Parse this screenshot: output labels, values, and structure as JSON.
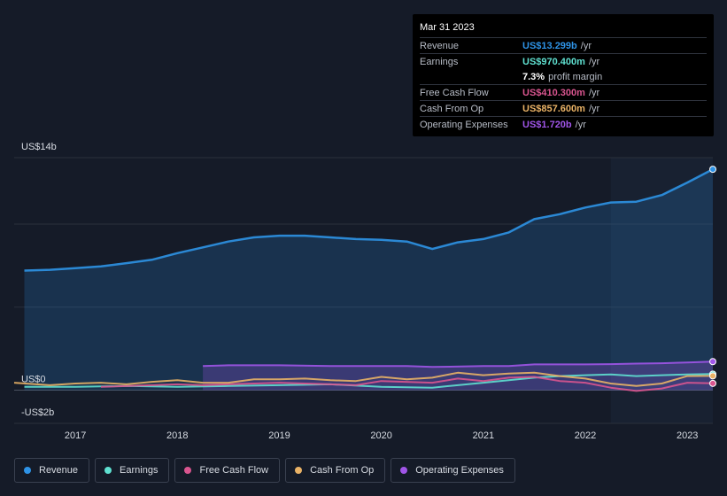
{
  "tooltip": {
    "date": "Mar 31 2023",
    "rows": [
      {
        "label": "Revenue",
        "value": "US$13.299b",
        "unit": "/yr",
        "color": "#2e93e6"
      },
      {
        "label": "Earnings",
        "value": "US$970.400m",
        "unit": "/yr",
        "color": "#5fe0d0"
      },
      {
        "label": "",
        "value": "7.3%",
        "unit": "profit margin",
        "color": "#ffffff"
      },
      {
        "label": "Free Cash Flow",
        "value": "US$410.300m",
        "unit": "/yr",
        "color": "#d9558f"
      },
      {
        "label": "Cash From Op",
        "value": "US$857.600m",
        "unit": "/yr",
        "color": "#e9b266"
      },
      {
        "label": "Operating Expenses",
        "value": "US$1.720b",
        "unit": "/yr",
        "color": "#a055e8"
      }
    ]
  },
  "legend": [
    {
      "label": "Revenue",
      "color": "#2e93e6"
    },
    {
      "label": "Earnings",
      "color": "#5fe0d0"
    },
    {
      "label": "Free Cash Flow",
      "color": "#d9558f"
    },
    {
      "label": "Cash From Op",
      "color": "#e9b266"
    },
    {
      "label": "Operating Expenses",
      "color": "#a055e8"
    }
  ],
  "chart_data": {
    "type": "area",
    "y_tick_labels": [
      "US$14b",
      "US$0",
      "-US$2b"
    ],
    "ylim": [
      -2,
      14
    ],
    "xlim": [
      2016.4,
      2023.25
    ],
    "x_tick_labels": [
      "2017",
      "2018",
      "2019",
      "2020",
      "2021",
      "2022",
      "2023"
    ],
    "x_ticks": [
      2017,
      2018,
      2019,
      2020,
      2021,
      2022,
      2023
    ],
    "forecast_shade_start": 2022.25,
    "grid": true,
    "legend_position": "bottom",
    "series": [
      {
        "name": "Revenue",
        "color": "#2e93e6",
        "fill": true,
        "points": [
          [
            2016.5,
            7.2
          ],
          [
            2016.75,
            7.25
          ],
          [
            2017.0,
            7.35
          ],
          [
            2017.25,
            7.45
          ],
          [
            2017.5,
            7.65
          ],
          [
            2017.75,
            7.85
          ],
          [
            2018.0,
            8.25
          ],
          [
            2018.25,
            8.6
          ],
          [
            2018.5,
            8.95
          ],
          [
            2018.75,
            9.2
          ],
          [
            2019.0,
            9.3
          ],
          [
            2019.25,
            9.3
          ],
          [
            2019.5,
            9.2
          ],
          [
            2019.75,
            9.1
          ],
          [
            2020.0,
            9.05
          ],
          [
            2020.25,
            8.95
          ],
          [
            2020.5,
            8.5
          ],
          [
            2020.75,
            8.9
          ],
          [
            2021.0,
            9.1
          ],
          [
            2021.25,
            9.5
          ],
          [
            2021.5,
            10.3
          ],
          [
            2021.75,
            10.6
          ],
          [
            2022.0,
            11.0
          ],
          [
            2022.25,
            11.3
          ],
          [
            2022.5,
            11.35
          ],
          [
            2022.75,
            11.75
          ],
          [
            2023.0,
            12.5
          ],
          [
            2023.25,
            13.3
          ]
        ]
      },
      {
        "name": "Earnings",
        "color": "#5fe0d0",
        "fill": false,
        "points": [
          [
            2016.5,
            0.2
          ],
          [
            2017.0,
            0.2
          ],
          [
            2017.5,
            0.25
          ],
          [
            2018.0,
            0.2
          ],
          [
            2018.5,
            0.25
          ],
          [
            2019.0,
            0.3
          ],
          [
            2019.5,
            0.35
          ],
          [
            2020.0,
            0.2
          ],
          [
            2020.5,
            0.15
          ],
          [
            2021.0,
            0.45
          ],
          [
            2021.5,
            0.75
          ],
          [
            2021.75,
            0.85
          ],
          [
            2022.0,
            0.9
          ],
          [
            2022.25,
            0.95
          ],
          [
            2022.5,
            0.85
          ],
          [
            2022.75,
            0.9
          ],
          [
            2023.0,
            0.95
          ],
          [
            2023.25,
            0.97
          ]
        ]
      },
      {
        "name": "Free Cash Flow",
        "color": "#d9558f",
        "fill": false,
        "points": [
          [
            2017.25,
            0.2
          ],
          [
            2017.75,
            0.3
          ],
          [
            2018.0,
            0.35
          ],
          [
            2018.25,
            0.3
          ],
          [
            2018.5,
            0.35
          ],
          [
            2019.0,
            0.45
          ],
          [
            2019.5,
            0.35
          ],
          [
            2019.75,
            0.3
          ],
          [
            2020.0,
            0.55
          ],
          [
            2020.5,
            0.45
          ],
          [
            2020.75,
            0.7
          ],
          [
            2021.0,
            0.55
          ],
          [
            2021.25,
            0.75
          ],
          [
            2021.5,
            0.8
          ],
          [
            2021.75,
            0.55
          ],
          [
            2022.0,
            0.45
          ],
          [
            2022.25,
            0.15
          ],
          [
            2022.5,
            -0.05
          ],
          [
            2022.75,
            0.1
          ],
          [
            2023.0,
            0.45
          ],
          [
            2023.25,
            0.41
          ]
        ]
      },
      {
        "name": "Cash From Op",
        "color": "#e9b266",
        "fill": false,
        "points": [
          [
            2016.4,
            0.45
          ],
          [
            2016.75,
            0.3
          ],
          [
            2017.0,
            0.4
          ],
          [
            2017.25,
            0.45
          ],
          [
            2017.5,
            0.35
          ],
          [
            2017.75,
            0.5
          ],
          [
            2018.0,
            0.6
          ],
          [
            2018.25,
            0.45
          ],
          [
            2018.5,
            0.45
          ],
          [
            2018.75,
            0.65
          ],
          [
            2019.0,
            0.65
          ],
          [
            2019.25,
            0.7
          ],
          [
            2019.5,
            0.6
          ],
          [
            2019.75,
            0.55
          ],
          [
            2020.0,
            0.8
          ],
          [
            2020.25,
            0.65
          ],
          [
            2020.5,
            0.75
          ],
          [
            2020.75,
            1.05
          ],
          [
            2021.0,
            0.9
          ],
          [
            2021.25,
            1.0
          ],
          [
            2021.5,
            1.05
          ],
          [
            2021.75,
            0.85
          ],
          [
            2022.0,
            0.7
          ],
          [
            2022.25,
            0.4
          ],
          [
            2022.5,
            0.25
          ],
          [
            2022.75,
            0.4
          ],
          [
            2023.0,
            0.85
          ],
          [
            2023.25,
            0.86
          ]
        ]
      },
      {
        "name": "Operating Expenses",
        "color": "#a055e8",
        "fill": true,
        "points": [
          [
            2018.25,
            1.45
          ],
          [
            2018.5,
            1.5
          ],
          [
            2019.0,
            1.5
          ],
          [
            2019.5,
            1.45
          ],
          [
            2020.0,
            1.45
          ],
          [
            2020.25,
            1.45
          ],
          [
            2020.5,
            1.4
          ],
          [
            2021.0,
            1.45
          ],
          [
            2021.25,
            1.45
          ],
          [
            2021.5,
            1.55
          ],
          [
            2022.0,
            1.55
          ],
          [
            2022.25,
            1.57
          ],
          [
            2022.5,
            1.6
          ],
          [
            2022.75,
            1.62
          ],
          [
            2023.0,
            1.67
          ],
          [
            2023.25,
            1.72
          ]
        ]
      }
    ]
  }
}
